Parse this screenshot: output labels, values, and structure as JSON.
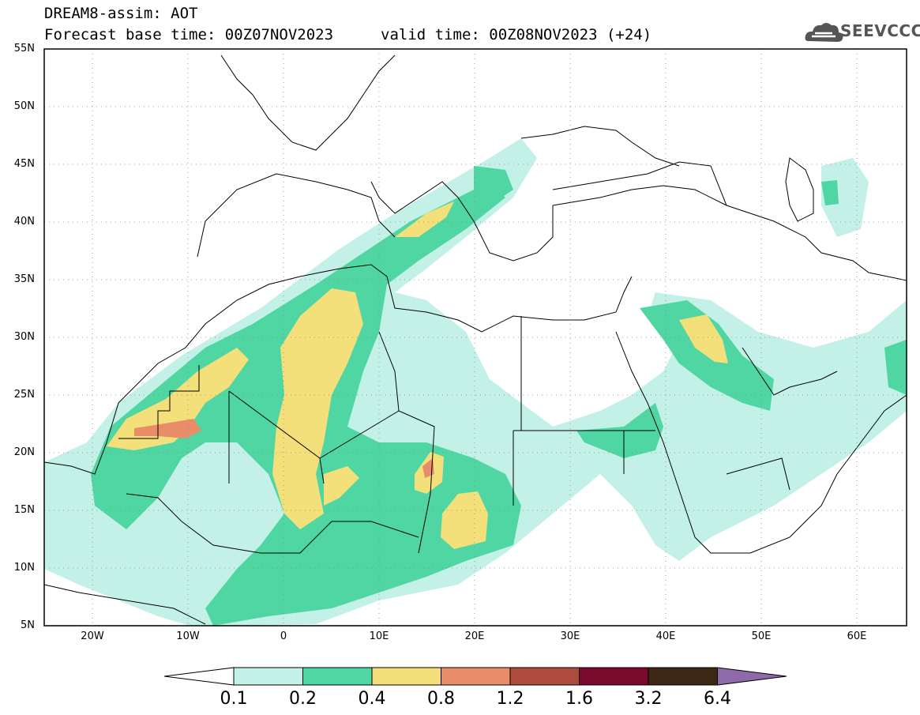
{
  "header": {
    "line1": "DREAM8-assim: AOT",
    "line2": "Forecast base time: 00Z07NOV2023",
    "valid": "valid time: 00Z08NOV2023 (+24)",
    "logo_text": "SEEVCCC",
    "logo_icon": "cloud-icon"
  },
  "map": {
    "lat_labels": [
      "55N",
      "50N",
      "45N",
      "40N",
      "35N",
      "30N",
      "25N",
      "20N",
      "15N",
      "10N",
      "5N"
    ],
    "lon_labels": [
      "20W",
      "10W",
      "0",
      "10E",
      "20E",
      "30E",
      "40E",
      "50E",
      "60E"
    ],
    "lat_range": [
      5,
      55
    ],
    "lon_range": [
      -25,
      65
    ],
    "grid": "dotted"
  },
  "colorbar": {
    "labels": [
      "0.1",
      "0.2",
      "0.4",
      "0.8",
      "1.2",
      "1.6",
      "3.2",
      "6.4"
    ],
    "colors": [
      "#ffffff",
      "#c3f1e7",
      "#4fd6a3",
      "#f3e07b",
      "#e98d68",
      "#ad4b3e",
      "#7a0a2e",
      "#3c2715",
      "#8f6aaa"
    ]
  },
  "colors": {
    "aot_0_1": "#c3f1e7",
    "aot_0_2": "#4fd6a3",
    "aot_0_4": "#f3e07b",
    "aot_0_8": "#e98d68"
  }
}
